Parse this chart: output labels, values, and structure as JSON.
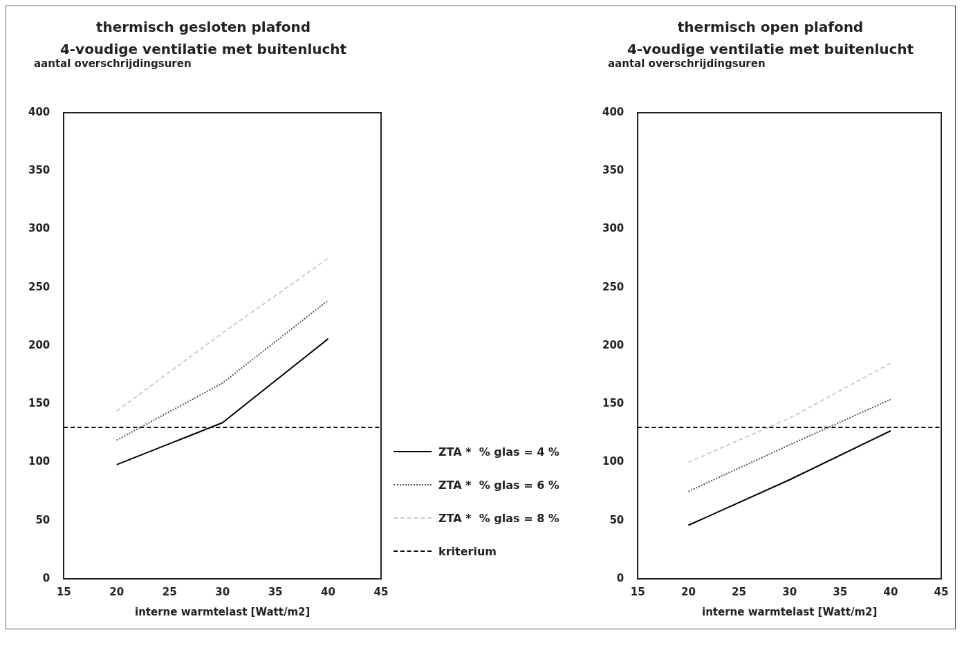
{
  "chart_data": [
    {
      "type": "line",
      "title": "thermisch gesloten plafond",
      "subtitle": "4-voudige ventilatie met buitenlucht",
      "ylabel": "aantal overschrijdingsuren",
      "xlabel": "interne warmtelast [Watt/m2]",
      "x": [
        20,
        30,
        40
      ],
      "xlim": [
        15,
        45
      ],
      "xticks": [
        15,
        20,
        25,
        30,
        35,
        40,
        45
      ],
      "ylim": [
        0,
        400
      ],
      "yticks": [
        0,
        50,
        100,
        150,
        200,
        250,
        300,
        350,
        400
      ],
      "grid": false,
      "legend": "right",
      "marker": "none",
      "series": [
        {
          "name": "ZTA *  % glas = 4 %",
          "color": "#000000",
          "line_style": "solid",
          "values": [
            98,
            134,
            206
          ]
        },
        {
          "name": "ZTA *  % glas = 6 %",
          "color": "#555555",
          "line_style": "dotted",
          "values": [
            119,
            168,
            239
          ]
        },
        {
          "name": "ZTA *  % glas = 8 %",
          "color": "#cccccc",
          "line_style": "dashed",
          "values": [
            144,
            211,
            275
          ]
        }
      ],
      "ref_lines": [
        {
          "axis": "y",
          "value": 130,
          "label": "kriterium",
          "color": "#000000",
          "line_style": "dashed"
        }
      ]
    },
    {
      "type": "line",
      "title": "thermisch open plafond",
      "subtitle": "4-voudige ventilatie met buitenlucht",
      "ylabel": "aantal overschrijdingsuren",
      "xlabel": "interne warmtelast [Watt/m2]",
      "x": [
        20,
        30,
        40
      ],
      "xlim": [
        15,
        45
      ],
      "xticks": [
        15,
        20,
        25,
        30,
        35,
        40,
        45
      ],
      "ylim": [
        0,
        400
      ],
      "yticks": [
        0,
        50,
        100,
        150,
        200,
        250,
        300,
        350,
        400
      ],
      "grid": false,
      "legend": false,
      "marker": "none",
      "series": [
        {
          "color": "#000000",
          "line_style": "solid",
          "values": [
            46,
            85,
            127
          ]
        },
        {
          "color": "#555555",
          "line_style": "dotted",
          "values": [
            75,
            115,
            154
          ]
        },
        {
          "color": "#cccccc",
          "line_style": "dashed",
          "values": [
            100,
            138,
            185
          ]
        }
      ],
      "ref_lines": [
        {
          "axis": "y",
          "value": 130,
          "color": "#000000",
          "line_style": "dashed"
        }
      ]
    }
  ]
}
